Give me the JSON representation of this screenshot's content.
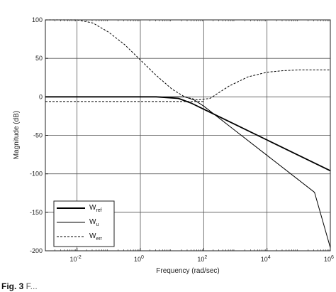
{
  "chart_data": {
    "type": "line",
    "title": "",
    "xlabel": "Frequency  (rad/sec)",
    "ylabel": "Magnitude (dB)",
    "xscale": "log",
    "xlim_exp": [
      -3,
      6
    ],
    "ylim": [
      -200,
      100
    ],
    "grid": true,
    "x_ticks": [
      {
        "base": "10",
        "exp": "-2",
        "value_exp": -2
      },
      {
        "base": "10",
        "exp": "0",
        "value_exp": 0
      },
      {
        "base": "10",
        "exp": "2",
        "value_exp": 2
      },
      {
        "base": "10",
        "exp": "4",
        "value_exp": 4
      },
      {
        "base": "10",
        "exp": "6",
        "value_exp": 6
      }
    ],
    "y_ticks": [
      "100",
      "50",
      "0",
      "-50",
      "-100",
      "-150",
      "-200"
    ],
    "y_tick_values": [
      100,
      50,
      0,
      -50,
      -100,
      -150,
      -200
    ],
    "legend_position": "bottom-left",
    "series": [
      {
        "id": "wref",
        "name_main": "W",
        "name_sub": "ref",
        "style": "solid-thick",
        "points": [
          [
            -3,
            0
          ],
          [
            0.5,
            0
          ],
          [
            1.2,
            -2
          ],
          [
            1.6,
            -8
          ],
          [
            2,
            -16
          ],
          [
            3,
            -36
          ],
          [
            4,
            -56
          ],
          [
            5,
            -76
          ],
          [
            6,
            -96
          ]
        ]
      },
      {
        "id": "wu",
        "name_main": "W",
        "name_sub": "u",
        "style": "solid-thin",
        "points": [
          [
            -3,
            0
          ],
          [
            1.4,
            0
          ],
          [
            1.7,
            -4
          ],
          [
            2,
            -12
          ],
          [
            3,
            -44
          ],
          [
            4,
            -76
          ],
          [
            5,
            -108
          ],
          [
            5.5,
            -124
          ],
          [
            6,
            -196
          ]
        ]
      },
      {
        "id": "werr",
        "name_main": "W",
        "name_sub": "err",
        "style": "dashed",
        "points": [
          [
            -3,
            -6
          ],
          [
            1,
            -6
          ],
          [
            2,
            -6
          ]
        ]
      },
      {
        "id": "werr-top",
        "style": "dashed",
        "points": [
          [
            -3,
            100
          ],
          [
            -2,
            100
          ],
          [
            -1.5,
            96
          ],
          [
            -1,
            84
          ],
          [
            -0.5,
            68
          ],
          [
            0,
            48
          ],
          [
            0.5,
            28
          ],
          [
            1,
            10
          ],
          [
            1.4,
            0
          ],
          [
            1.8,
            -4
          ],
          [
            2.2,
            -2
          ],
          [
            2.8,
            14
          ],
          [
            3.4,
            26
          ],
          [
            4,
            32
          ],
          [
            4.5,
            34
          ],
          [
            5,
            35
          ],
          [
            6,
            35
          ]
        ]
      }
    ]
  },
  "caption": {
    "label": "Fig. 3",
    "rest": "  F..."
  }
}
